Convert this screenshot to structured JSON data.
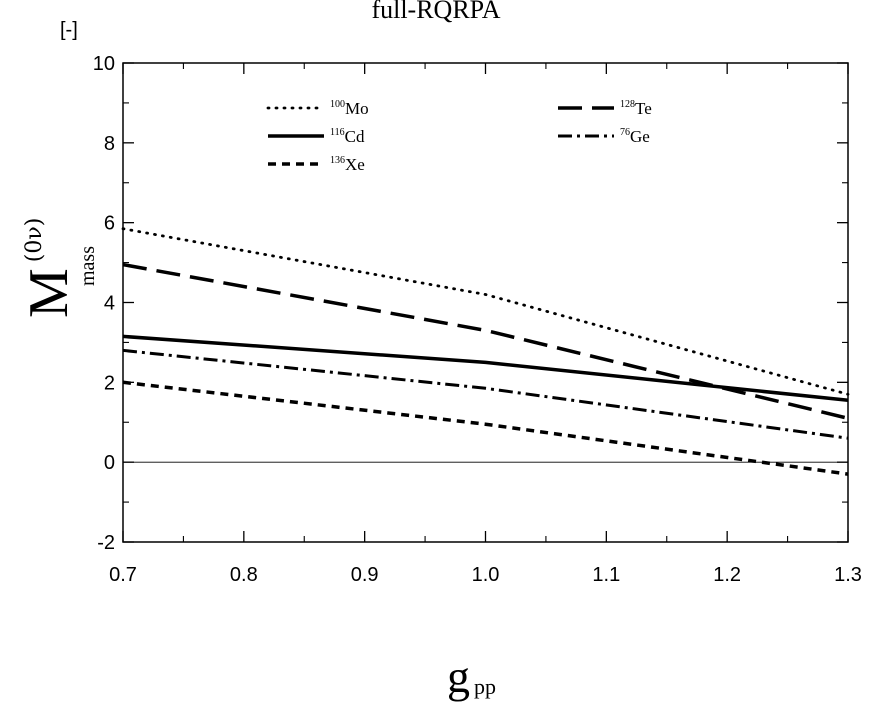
{
  "chart_data": {
    "type": "line",
    "title": "full-RQRPA",
    "unit_label": "[-]",
    "ylabel": {
      "main": "M",
      "sup": "(0ν)",
      "sub": "mass"
    },
    "xlabel": {
      "main": "g",
      "sub": "pp"
    },
    "xlim": [
      0.7,
      1.3
    ],
    "ylim": [
      -2,
      10
    ],
    "x_ticks": [
      0.7,
      0.8,
      0.9,
      1.0,
      1.1,
      1.2,
      1.3
    ],
    "x_tick_labels": [
      "0.7",
      "0.8",
      "0.9",
      "1.0",
      "1.1",
      "1.2",
      "1.3"
    ],
    "y_ticks": [
      -2,
      0,
      2,
      4,
      6,
      8,
      10
    ],
    "y_tick_labels": [
      "-2",
      "0",
      "2",
      "4",
      "6",
      "8",
      "10"
    ],
    "zero_line": true,
    "grid": false,
    "legend_position": "top",
    "series": [
      {
        "name": "Mo",
        "mass_number": "100",
        "style": "dotted",
        "x": [
          0.7,
          1.0,
          1.3
        ],
        "y": [
          5.85,
          4.2,
          1.7
        ]
      },
      {
        "name": "Te",
        "mass_number": "128",
        "style": "dashed",
        "x": [
          0.7,
          1.0,
          1.3
        ],
        "y": [
          4.95,
          3.3,
          1.1
        ]
      },
      {
        "name": "Cd",
        "mass_number": "116",
        "style": "solid",
        "x": [
          0.7,
          1.0,
          1.3
        ],
        "y": [
          3.15,
          2.5,
          1.55
        ]
      },
      {
        "name": "Ge",
        "mass_number": "76",
        "style": "dash-dot",
        "x": [
          0.7,
          1.0,
          1.3
        ],
        "y": [
          2.8,
          1.85,
          0.6
        ]
      },
      {
        "name": "Xe",
        "mass_number": "136",
        "style": "short-dash",
        "x": [
          0.7,
          1.0,
          1.3
        ],
        "y": [
          2.0,
          0.95,
          -0.3
        ]
      }
    ]
  }
}
